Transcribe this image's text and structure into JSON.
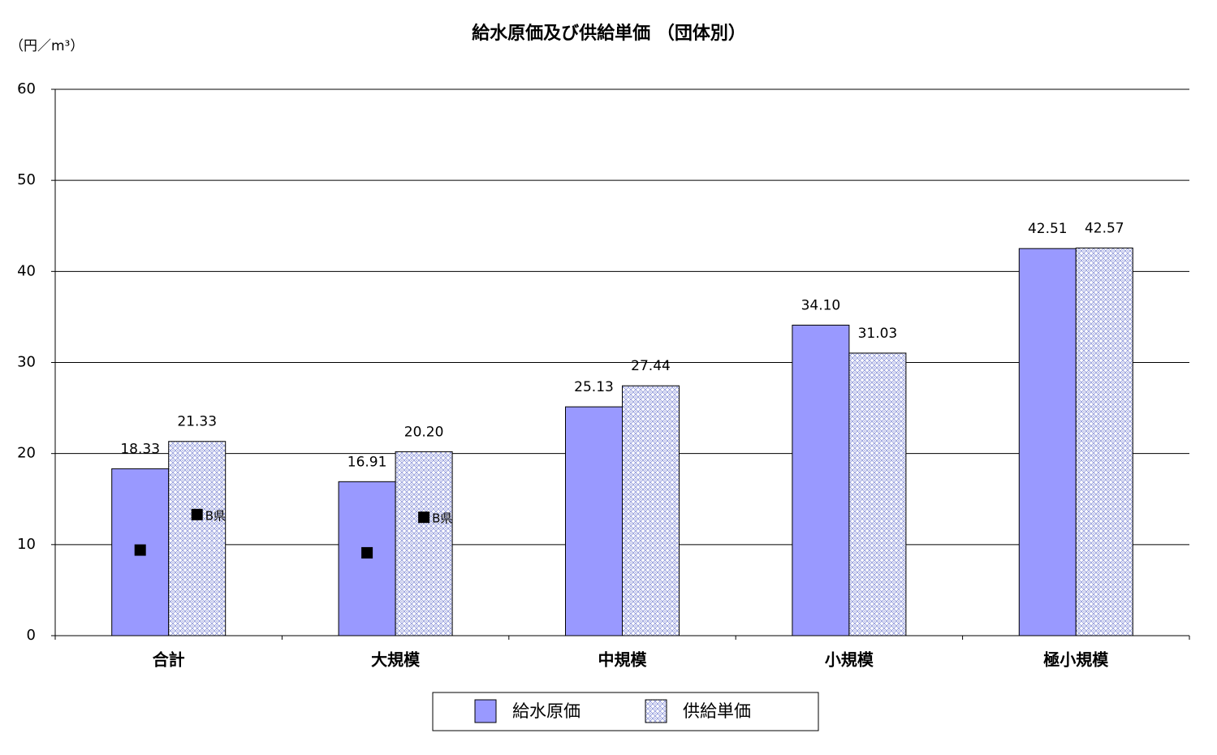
{
  "chart_data": {
    "type": "bar",
    "title": "給水原価及び供給単価 （団体別）",
    "y_axis_label": "（円／m³）",
    "categories": [
      "合計",
      "大規模",
      "中規模",
      "小規模",
      "極小規模"
    ],
    "series": [
      {
        "name": "給水原価",
        "color": "#9999ff",
        "values": [
          18.33,
          16.91,
          25.13,
          34.1,
          42.51
        ],
        "value_labels": [
          "18.33",
          "16.91",
          "25.13",
          "34.10",
          "42.51"
        ]
      },
      {
        "name": "供給単価",
        "color": "#8a93d8",
        "pattern": true,
        "values": [
          21.33,
          20.2,
          27.44,
          31.03,
          42.57
        ],
        "value_labels": [
          "21.33",
          "20.20",
          "27.44",
          "31.03",
          "42.57"
        ]
      }
    ],
    "markers": [
      {
        "values": [
          9.4,
          9.1,
          null,
          null,
          null
        ]
      },
      {
        "label": "B県",
        "values": [
          13.3,
          13.0,
          null,
          null,
          null
        ]
      }
    ],
    "ylim": [
      0,
      60
    ],
    "yticks": [
      0,
      10,
      20,
      30,
      40,
      50,
      60
    ],
    "grid": true
  }
}
